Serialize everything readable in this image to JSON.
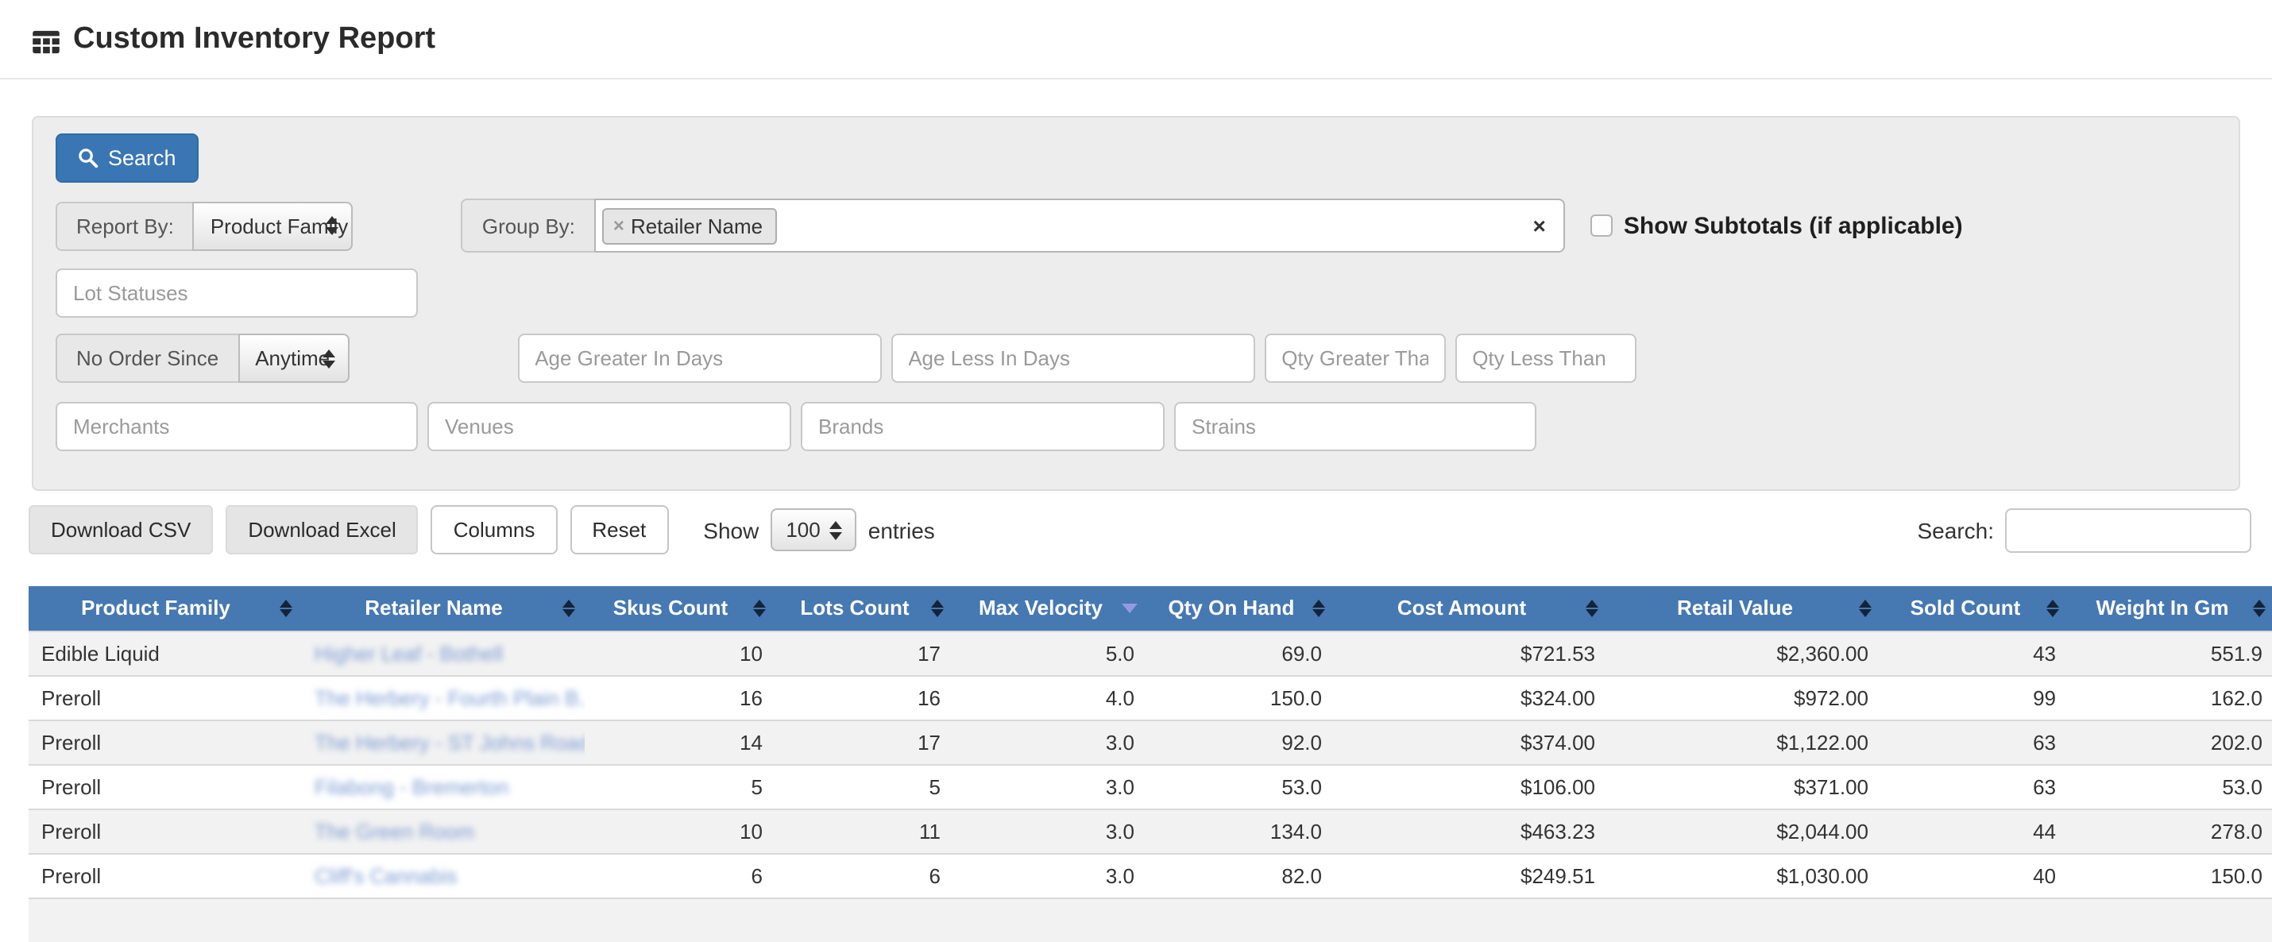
{
  "page": {
    "title": "Custom Inventory Report"
  },
  "colors": {
    "primary_button_blue": "#3a76b4",
    "table_header_blue": "#4678b2",
    "retailer_link_blue": "#7b9bd2",
    "sorted_arrow_lavender": "#9599e0",
    "panel_background": "#ededed"
  },
  "filter_panel": {
    "search_button_label": "Search",
    "report_by": {
      "label": "Report By:",
      "selected": "Product Family"
    },
    "group_by": {
      "label": "Group By:",
      "selected_tag": "Retailer Name",
      "tag_remove": "×",
      "clear": "×"
    },
    "show_subtotals_label": "Show Subtotals (if applicable)",
    "no_order_since": {
      "label": "No Order Since",
      "selected": "Anytime"
    },
    "placeholders": {
      "lot_statuses": "Lot Statuses",
      "age_greater": "Age Greater In Days",
      "age_less": "Age Less In Days",
      "qty_greater": "Qty Greater Than",
      "qty_less": "Qty Less Than",
      "merchants": "Merchants",
      "venues": "Venues",
      "brands": "Brands",
      "strains": "Strains"
    }
  },
  "toolbar": {
    "download_csv_label": "Download CSV",
    "download_excel_label": "Download Excel",
    "columns_label": "Columns",
    "reset_label": "Reset",
    "show_label": "Show",
    "entries_per_page": "100",
    "entries_label": "entries",
    "search_label": "Search:",
    "search_value": ""
  },
  "table": {
    "columns": [
      {
        "label": "Product Family",
        "key": "product-family",
        "sort": "both",
        "align": "left",
        "type": "text"
      },
      {
        "label": "Retailer Name",
        "key": "retailer-name",
        "sort": "both",
        "align": "left",
        "type": "link"
      },
      {
        "label": "Skus Count",
        "key": "skus-count",
        "sort": "both",
        "align": "right",
        "type": "text"
      },
      {
        "label": "Lots Count",
        "key": "lots-count",
        "sort": "both",
        "align": "right",
        "type": "text"
      },
      {
        "label": "Max Velocity",
        "key": "max-velocity",
        "sort": "desc",
        "align": "right",
        "type": "text"
      },
      {
        "label": "Qty On Hand",
        "key": "qty-on-hand",
        "sort": "both",
        "align": "right",
        "type": "text"
      },
      {
        "label": "Cost Amount",
        "key": "cost-amount",
        "sort": "both",
        "align": "right",
        "type": "text"
      },
      {
        "label": "Retail Value",
        "key": "retail-value",
        "sort": "both",
        "align": "right",
        "type": "text"
      },
      {
        "label": "Sold Count",
        "key": "sold-count",
        "sort": "both",
        "align": "right",
        "type": "text"
      },
      {
        "label": "Weight In Gm",
        "key": "weight-in-gm",
        "sort": "both",
        "align": "right",
        "type": "text"
      }
    ],
    "retailer_names_redacted": true,
    "rows": [
      [
        "Edible Liquid",
        "Higher Leaf - Bothell",
        "10",
        "17",
        "5.0",
        "69.0",
        "$721.53",
        "$2,360.00",
        "43",
        "551.9"
      ],
      [
        "Preroll",
        "The Herbery - Fourth Plain B...",
        "16",
        "16",
        "4.0",
        "150.0",
        "$324.00",
        "$972.00",
        "99",
        "162.0"
      ],
      [
        "Preroll",
        "The Herbery - ST Johns Road",
        "14",
        "17",
        "3.0",
        "92.0",
        "$374.00",
        "$1,122.00",
        "63",
        "202.0"
      ],
      [
        "Preroll",
        "Filabong - Bremerton",
        "5",
        "5",
        "3.0",
        "53.0",
        "$106.00",
        "$371.00",
        "63",
        "53.0"
      ],
      [
        "Preroll",
        "The Green Room",
        "10",
        "11",
        "3.0",
        "134.0",
        "$463.23",
        "$2,044.00",
        "44",
        "278.0"
      ],
      [
        "Preroll",
        "Cliff's Cannabis",
        "6",
        "6",
        "3.0",
        "82.0",
        "$249.51",
        "$1,030.00",
        "40",
        "150.0"
      ]
    ]
  }
}
